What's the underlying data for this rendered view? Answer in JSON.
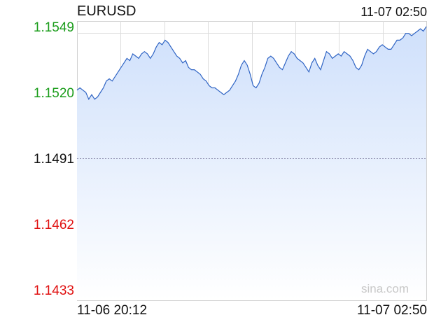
{
  "header": {
    "symbol": "EURUSD",
    "timestamp": "11-07 02:50"
  },
  "x_labels": {
    "start": "11-06 20:12",
    "end": "11-07 02:50"
  },
  "watermark": "sina.com",
  "colors": {
    "up": "#1a9c1a",
    "down": "#e01010",
    "neutral": "#111111",
    "line": "#2f64c4",
    "fill_top": "#cfe0fb",
    "grid": "#dcdcdc",
    "prev_close_line": "#9a9ab8"
  },
  "chart_data": {
    "type": "area",
    "title": "EURUSD",
    "x_start_label": "11-06 20:12",
    "x_end_label": "11-07 02:50",
    "ylim": [
      1.1433,
      1.1549
    ],
    "y_ticks": [
      {
        "label": "1.1549",
        "value": 1.1549,
        "color": "up"
      },
      {
        "label": "1.1520",
        "value": 1.152,
        "color": "up"
      },
      {
        "label": "1.1491",
        "value": 1.1491,
        "color": "neutral"
      },
      {
        "label": "1.1462",
        "value": 1.1462,
        "color": "down"
      },
      {
        "label": "1.1433",
        "value": 1.1433,
        "color": "down"
      }
    ],
    "reference_line": 1.1491,
    "vertical_grid_count": 8,
    "series": [
      {
        "values": [
          1.1521,
          1.1522,
          1.1521,
          1.152,
          1.1517,
          1.1519,
          1.1517,
          1.1518,
          1.152,
          1.1522,
          1.1525,
          1.1526,
          1.1525,
          1.1527,
          1.1529,
          1.1531,
          1.1533,
          1.1535,
          1.1534,
          1.1537,
          1.1536,
          1.1535,
          1.1537,
          1.1538,
          1.1537,
          1.1535,
          1.1537,
          1.154,
          1.1542,
          1.1541,
          1.1543,
          1.1542,
          1.154,
          1.1538,
          1.1536,
          1.1535,
          1.1533,
          1.1534,
          1.1531,
          1.153,
          1.153,
          1.1529,
          1.1528,
          1.1526,
          1.1525,
          1.1523,
          1.1522,
          1.1522,
          1.1521,
          1.152,
          1.1519,
          1.152,
          1.1521,
          1.1523,
          1.1525,
          1.1528,
          1.1532,
          1.1534,
          1.1532,
          1.1528,
          1.1523,
          1.1522,
          1.1524,
          1.1528,
          1.1531,
          1.1535,
          1.1536,
          1.1535,
          1.1533,
          1.1531,
          1.153,
          1.1533,
          1.1536,
          1.1538,
          1.1537,
          1.1535,
          1.1534,
          1.1533,
          1.1531,
          1.1529,
          1.1533,
          1.1535,
          1.1532,
          1.153,
          1.1534,
          1.1538,
          1.1537,
          1.1535,
          1.1536,
          1.1537,
          1.1536,
          1.1538,
          1.1537,
          1.1536,
          1.1534,
          1.1531,
          1.153,
          1.1532,
          1.1536,
          1.1539,
          1.1538,
          1.1537,
          1.1538,
          1.154,
          1.1541,
          1.154,
          1.1539,
          1.1539,
          1.1541,
          1.1543,
          1.1543,
          1.1544,
          1.1546,
          1.1546,
          1.1545,
          1.1546,
          1.1547,
          1.1548,
          1.1547,
          1.1549
        ]
      }
    ]
  }
}
